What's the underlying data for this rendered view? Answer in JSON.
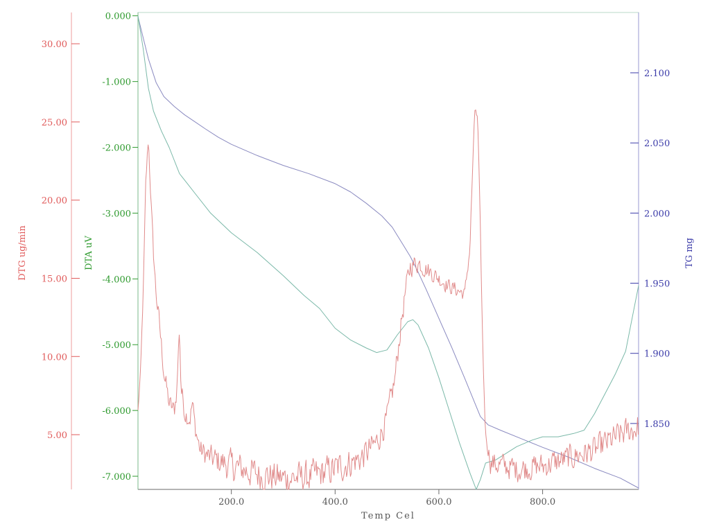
{
  "chart_data": {
    "type": "line",
    "xlabel": "Temp Cel",
    "xlim": [
      20,
      985
    ],
    "x_ticks": [
      "200.0",
      "400.0",
      "600.0",
      "800.0"
    ],
    "x_tick_values": [
      200,
      400,
      600,
      800
    ],
    "grid": false,
    "axes": {
      "dtg": {
        "label": "DTG ug/min",
        "color": "#e05a5a",
        "range": [
          1.5,
          32.0
        ],
        "ticks": [
          "5.00",
          "10.00",
          "15.00",
          "20.00",
          "25.00",
          "30.00"
        ],
        "tick_values": [
          5,
          10,
          15,
          20,
          25,
          30
        ]
      },
      "dta": {
        "label": "DTA uV",
        "color": "#2e9a2e",
        "range": [
          -7.2,
          0.05
        ],
        "ticks": [
          "0.000",
          "-1.000",
          "-2.000",
          "-3.000",
          "-4.000",
          "-5.000",
          "-6.000",
          "-7.000"
        ],
        "tick_values": [
          0,
          -1,
          -2,
          -3,
          -4,
          -5,
          -6,
          -7
        ]
      },
      "tg": {
        "label": "TG mg",
        "color": "#3a3aa8",
        "range": [
          1.803,
          2.143
        ],
        "ticks": [
          "2.100",
          "2.050",
          "2.000",
          "1.950",
          "1.900",
          "1.850"
        ],
        "tick_values": [
          2.1,
          2.05,
          2.0,
          1.95,
          1.9,
          1.85
        ]
      }
    },
    "series": [
      {
        "axis": "tg",
        "color": "#8a8ac0",
        "points": [
          [
            20,
            2.14
          ],
          [
            30,
            2.125
          ],
          [
            40,
            2.11
          ],
          [
            55,
            2.093
          ],
          [
            70,
            2.083
          ],
          [
            90,
            2.076
          ],
          [
            110,
            2.07
          ],
          [
            130,
            2.065
          ],
          [
            150,
            2.06
          ],
          [
            175,
            2.054
          ],
          [
            200,
            2.049
          ],
          [
            250,
            2.041
          ],
          [
            300,
            2.034
          ],
          [
            350,
            2.028
          ],
          [
            400,
            2.021
          ],
          [
            430,
            2.015
          ],
          [
            460,
            2.007
          ],
          [
            490,
            1.998
          ],
          [
            510,
            1.99
          ],
          [
            530,
            1.978
          ],
          [
            545,
            1.969
          ],
          [
            560,
            1.958
          ],
          [
            575,
            1.946
          ],
          [
            600,
            1.925
          ],
          [
            625,
            1.904
          ],
          [
            650,
            1.882
          ],
          [
            670,
            1.864
          ],
          [
            680,
            1.855
          ],
          [
            695,
            1.849
          ],
          [
            720,
            1.845
          ],
          [
            760,
            1.839
          ],
          [
            800,
            1.833
          ],
          [
            850,
            1.826
          ],
          [
            900,
            1.818
          ],
          [
            950,
            1.811
          ],
          [
            985,
            1.804
          ]
        ]
      },
      {
        "axis": "dta",
        "color": "#7ab8a8",
        "points": [
          [
            20,
            0.0
          ],
          [
            30,
            -0.5
          ],
          [
            40,
            -1.1
          ],
          [
            50,
            -1.45
          ],
          [
            65,
            -1.75
          ],
          [
            80,
            -2.0
          ],
          [
            90,
            -2.2
          ],
          [
            100,
            -2.4
          ],
          [
            115,
            -2.55
          ],
          [
            130,
            -2.7
          ],
          [
            160,
            -3.0
          ],
          [
            200,
            -3.3
          ],
          [
            250,
            -3.6
          ],
          [
            300,
            -3.95
          ],
          [
            340,
            -4.25
          ],
          [
            370,
            -4.45
          ],
          [
            400,
            -4.75
          ],
          [
            430,
            -4.93
          ],
          [
            460,
            -5.05
          ],
          [
            480,
            -5.12
          ],
          [
            500,
            -5.08
          ],
          [
            520,
            -4.85
          ],
          [
            540,
            -4.65
          ],
          [
            550,
            -4.62
          ],
          [
            560,
            -4.7
          ],
          [
            580,
            -5.05
          ],
          [
            600,
            -5.5
          ],
          [
            620,
            -6.0
          ],
          [
            640,
            -6.5
          ],
          [
            660,
            -6.95
          ],
          [
            672,
            -7.2
          ],
          [
            680,
            -7.05
          ],
          [
            690,
            -6.8
          ],
          [
            710,
            -6.75
          ],
          [
            730,
            -6.65
          ],
          [
            750,
            -6.55
          ],
          [
            780,
            -6.45
          ],
          [
            800,
            -6.4
          ],
          [
            830,
            -6.4
          ],
          [
            860,
            -6.35
          ],
          [
            880,
            -6.3
          ],
          [
            900,
            -6.05
          ],
          [
            920,
            -5.75
          ],
          [
            940,
            -5.45
          ],
          [
            960,
            -5.1
          ],
          [
            985,
            -4.1
          ]
        ]
      },
      {
        "axis": "dtg",
        "color": "#e08a8a",
        "noise": [
          [
            20,
            0.2
          ],
          [
            60,
            0.6
          ],
          [
            130,
            0.6
          ],
          [
            200,
            0.9
          ],
          [
            400,
            0.9
          ],
          [
            520,
            0.7
          ],
          [
            580,
            0.5
          ],
          [
            660,
            0.4
          ],
          [
            690,
            0.2
          ],
          [
            700,
            0.7
          ],
          [
            985,
            0.8
          ]
        ],
        "points": [
          [
            20,
            6.5
          ],
          [
            25,
            9.0
          ],
          [
            30,
            14.0
          ],
          [
            35,
            21.0
          ],
          [
            40,
            24.0
          ],
          [
            45,
            20.0
          ],
          [
            50,
            16.5
          ],
          [
            55,
            14.0
          ],
          [
            60,
            12.5
          ],
          [
            70,
            9.0
          ],
          [
            80,
            7.0
          ],
          [
            90,
            6.5
          ],
          [
            95,
            8.0
          ],
          [
            100,
            12.0
          ],
          [
            103,
            8.0
          ],
          [
            110,
            6.5
          ],
          [
            120,
            6.0
          ],
          [
            125,
            7.0
          ],
          [
            130,
            5.5
          ],
          [
            140,
            4.0
          ],
          [
            160,
            3.5
          ],
          [
            200,
            3.0
          ],
          [
            250,
            2.5
          ],
          [
            300,
            2.2
          ],
          [
            350,
            2.3
          ],
          [
            400,
            2.8
          ],
          [
            450,
            3.5
          ],
          [
            480,
            4.5
          ],
          [
            500,
            6.0
          ],
          [
            515,
            8.5
          ],
          [
            525,
            11.5
          ],
          [
            535,
            14.0
          ],
          [
            545,
            15.8
          ],
          [
            560,
            16.0
          ],
          [
            580,
            15.5
          ],
          [
            600,
            15.0
          ],
          [
            620,
            14.5
          ],
          [
            650,
            14.0
          ],
          [
            660,
            17.0
          ],
          [
            665,
            22.0
          ],
          [
            670,
            26.0
          ],
          [
            675,
            25.0
          ],
          [
            680,
            18.0
          ],
          [
            685,
            10.0
          ],
          [
            690,
            5.0
          ],
          [
            700,
            3.2
          ],
          [
            750,
            2.8
          ],
          [
            800,
            3.0
          ],
          [
            850,
            3.5
          ],
          [
            900,
            4.0
          ],
          [
            950,
            5.0
          ],
          [
            985,
            5.5
          ]
        ]
      }
    ]
  }
}
